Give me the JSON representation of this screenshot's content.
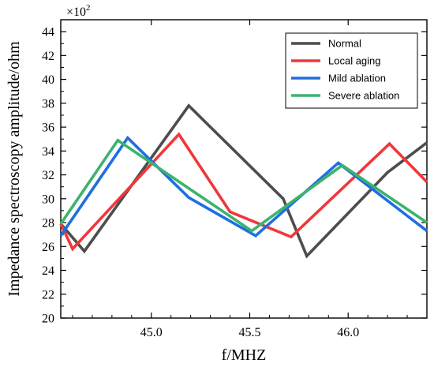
{
  "chart_data": {
    "type": "line",
    "xlabel": "f/MHZ",
    "ylabel": "Impedance  spectroscopy amplitude/ohm",
    "y_multiplier": {
      "base": "×10",
      "exponent": "2"
    },
    "xlim": [
      44.54,
      46.4
    ],
    "ylim": [
      20,
      45
    ],
    "x_ticks": [
      45.0,
      45.5,
      46.0
    ],
    "x_tick_labels": [
      "45.0",
      "45.5",
      "46.0"
    ],
    "y_ticks": [
      20,
      22,
      24,
      26,
      28,
      30,
      32,
      34,
      36,
      38,
      40,
      42,
      44
    ],
    "y_tick_labels": [
      "20",
      "22",
      "24",
      "26",
      "28",
      "30",
      "32",
      "34",
      "36",
      "38",
      "40",
      "42",
      "44"
    ],
    "grid": false,
    "legend_position": "top-right",
    "series": [
      {
        "name": "Normal",
        "color": "#4d4d4d",
        "x": [
          44.54,
          44.66,
          45.19,
          45.67,
          45.79,
          46.2,
          46.4
        ],
        "y": [
          27.9,
          25.6,
          37.8,
          30.0,
          25.2,
          32.2,
          34.7
        ]
      },
      {
        "name": "Local aging",
        "color": "#f0373c",
        "x": [
          44.54,
          44.6,
          45.14,
          45.4,
          45.71,
          46.21,
          46.4
        ],
        "y": [
          27.9,
          25.8,
          35.4,
          28.9,
          26.8,
          34.6,
          31.4
        ]
      },
      {
        "name": "Mild ablation",
        "color": "#1f6fe0",
        "x": [
          44.54,
          44.88,
          45.19,
          45.53,
          45.95,
          46.4
        ],
        "y": [
          26.9,
          35.1,
          30.1,
          26.9,
          33.0,
          27.3
        ]
      },
      {
        "name": "Severe ablation",
        "color": "#3cb36e",
        "x": [
          44.54,
          44.83,
          45.51,
          45.97,
          46.4
        ],
        "y": [
          27.9,
          34.9,
          27.3,
          32.8,
          28.0
        ]
      }
    ]
  }
}
